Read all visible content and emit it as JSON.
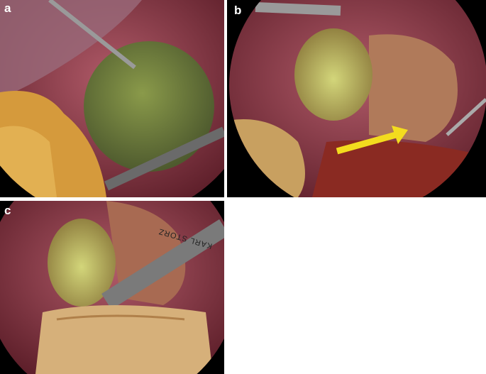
{
  "panels": [
    {
      "label": "a"
    },
    {
      "label": "b"
    },
    {
      "label": "c",
      "instrument_text": "KARL STORZ"
    }
  ]
}
